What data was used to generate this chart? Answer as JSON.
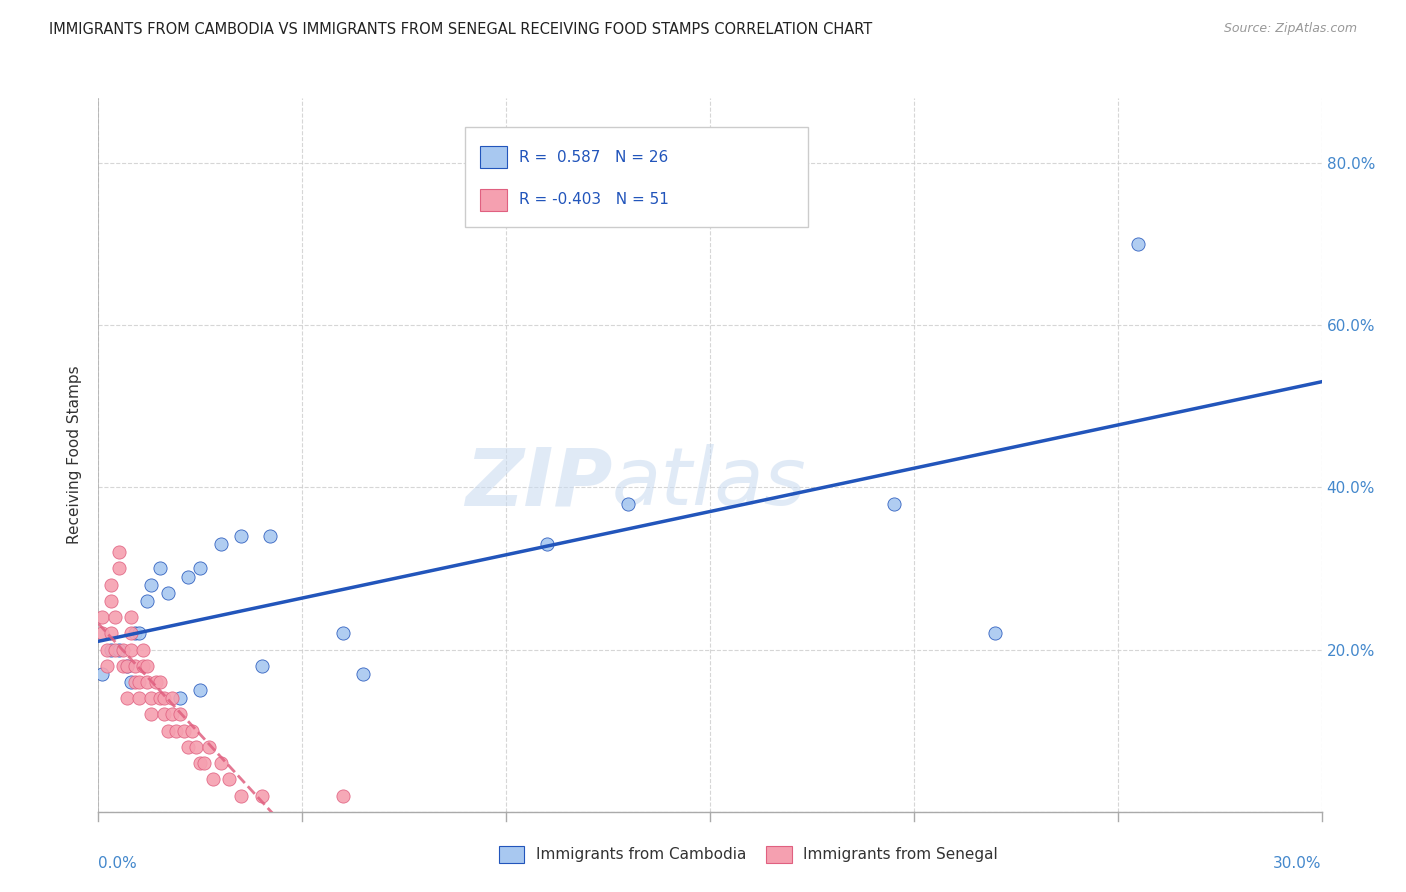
{
  "title": "IMMIGRANTS FROM CAMBODIA VS IMMIGRANTS FROM SENEGAL RECEIVING FOOD STAMPS CORRELATION CHART",
  "source": "Source: ZipAtlas.com",
  "ylabel": "Receiving Food Stamps",
  "xlim": [
    0.0,
    0.3
  ],
  "ylim": [
    0.0,
    0.88
  ],
  "cambodia_color": "#a8c8f0",
  "senegal_color": "#f5a0b0",
  "trendline_cambodia_color": "#2255bb",
  "trendline_senegal_color": "#e06080",
  "background_color": "#ffffff",
  "grid_color": "#cccccc",
  "legend_r1_text": "R =  0.587   N = 26",
  "legend_r2_text": "R = -0.403   N = 51",
  "watermark_zip": "ZIP",
  "watermark_atlas": "atlas",
  "cambodia_x": [
    0.001,
    0.003,
    0.005,
    0.007,
    0.008,
    0.009,
    0.01,
    0.012,
    0.013,
    0.015,
    0.017,
    0.02,
    0.022,
    0.025,
    0.025,
    0.03,
    0.035,
    0.04,
    0.042,
    0.06,
    0.065,
    0.11,
    0.13,
    0.195,
    0.22,
    0.255
  ],
  "cambodia_y": [
    0.17,
    0.2,
    0.2,
    0.18,
    0.16,
    0.22,
    0.22,
    0.26,
    0.28,
    0.3,
    0.27,
    0.14,
    0.29,
    0.3,
    0.15,
    0.33,
    0.34,
    0.18,
    0.34,
    0.22,
    0.17,
    0.33,
    0.38,
    0.38,
    0.22,
    0.7
  ],
  "senegal_x": [
    0.001,
    0.001,
    0.002,
    0.002,
    0.003,
    0.003,
    0.003,
    0.004,
    0.004,
    0.005,
    0.005,
    0.006,
    0.006,
    0.007,
    0.007,
    0.008,
    0.008,
    0.008,
    0.009,
    0.009,
    0.01,
    0.01,
    0.011,
    0.011,
    0.012,
    0.012,
    0.013,
    0.013,
    0.014,
    0.015,
    0.015,
    0.016,
    0.016,
    0.017,
    0.018,
    0.018,
    0.019,
    0.02,
    0.021,
    0.022,
    0.023,
    0.024,
    0.025,
    0.026,
    0.027,
    0.028,
    0.03,
    0.032,
    0.035,
    0.04,
    0.06
  ],
  "senegal_y": [
    0.22,
    0.24,
    0.2,
    0.18,
    0.22,
    0.26,
    0.28,
    0.2,
    0.24,
    0.3,
    0.32,
    0.2,
    0.18,
    0.18,
    0.14,
    0.2,
    0.22,
    0.24,
    0.16,
    0.18,
    0.14,
    0.16,
    0.18,
    0.2,
    0.16,
    0.18,
    0.14,
    0.12,
    0.16,
    0.14,
    0.16,
    0.12,
    0.14,
    0.1,
    0.12,
    0.14,
    0.1,
    0.12,
    0.1,
    0.08,
    0.1,
    0.08,
    0.06,
    0.06,
    0.08,
    0.04,
    0.06,
    0.04,
    0.02,
    0.02,
    0.02
  ]
}
